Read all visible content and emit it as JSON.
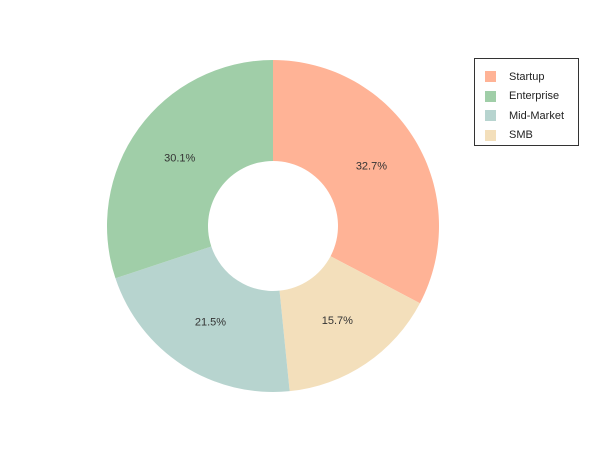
{
  "chart_data": {
    "type": "pie",
    "style": "donut",
    "title": "",
    "labels": [
      "Startup",
      "Enterprise",
      "Mid-Market",
      "SMB"
    ],
    "values": [
      32.7,
      30.1,
      21.5,
      15.7
    ],
    "value_labels": [
      "32.7%",
      "30.1%",
      "21.5%",
      "15.7%"
    ],
    "slice_order_clockwise_from_top": [
      "Startup",
      "SMB",
      "Mid-Market",
      "Enterprise"
    ],
    "colors": {
      "Startup": "#ffb396",
      "Enterprise": "#a0cea8",
      "Mid-Market": "#b7d4cf",
      "SMB": "#f3dfbb"
    },
    "legend_position": "top-right"
  },
  "legend": {
    "items": [
      {
        "label": "Startup",
        "color": "#ffb396"
      },
      {
        "label": "Enterprise",
        "color": "#a0cea8"
      },
      {
        "label": "Mid-Market",
        "color": "#b7d4cf"
      },
      {
        "label": "SMB",
        "color": "#f3dfbb"
      }
    ]
  }
}
